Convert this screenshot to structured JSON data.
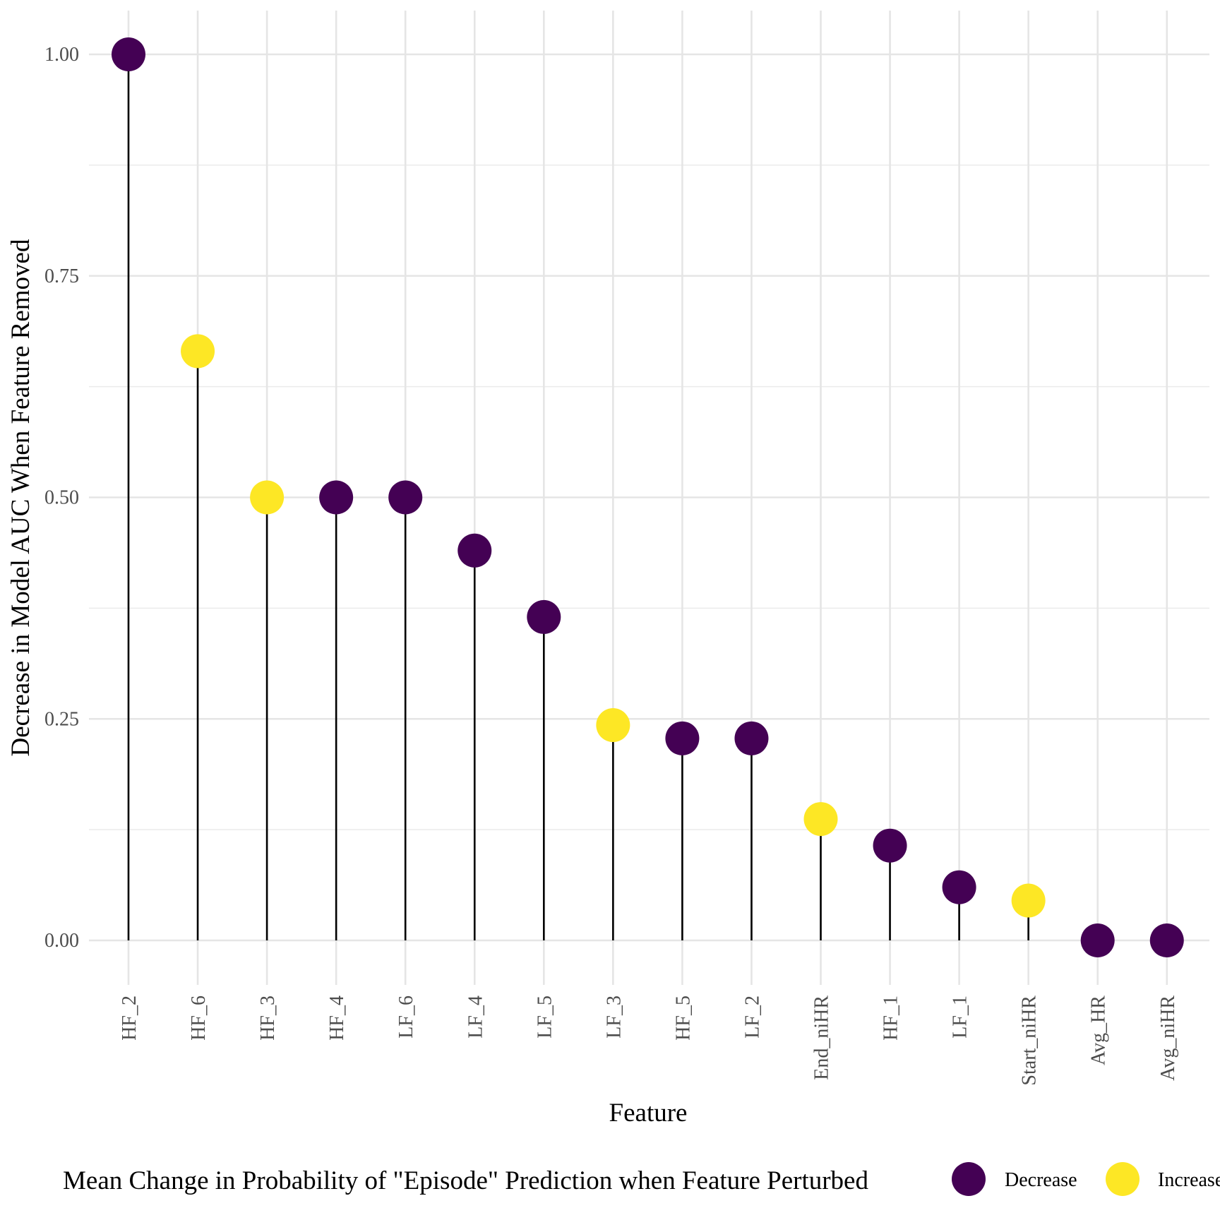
{
  "chart_data": {
    "type": "lollipop",
    "xlabel": "Feature",
    "ylabel": "Decrease in Model AUC When Feature Removed",
    "ylim": [
      -0.05,
      1.05
    ],
    "yticks": [
      0.0,
      0.25,
      0.5,
      0.75,
      1.0
    ],
    "ytick_labels": [
      "0.00",
      "0.25",
      "0.50",
      "0.75",
      "1.00"
    ],
    "grid": true,
    "categories": [
      "HF_2",
      "HF_6",
      "HF_3",
      "HF_4",
      "LF_6",
      "LF_4",
      "LF_5",
      "LF_3",
      "HF_5",
      "LF_2",
      "End_niHR",
      "HF_1",
      "LF_1",
      "Start_niHR",
      "Avg_HR",
      "Avg_niHR"
    ],
    "values": [
      1.0,
      0.665,
      0.5,
      0.5,
      0.5,
      0.44,
      0.365,
      0.243,
      0.228,
      0.228,
      0.137,
      0.107,
      0.06,
      0.045,
      0.0,
      0.0
    ],
    "direction": [
      "Decrease",
      "Increase",
      "Increase",
      "Decrease",
      "Decrease",
      "Decrease",
      "Decrease",
      "Increase",
      "Decrease",
      "Decrease",
      "Increase",
      "Decrease",
      "Decrease",
      "Increase",
      "Decrease",
      "Decrease"
    ],
    "legend": {
      "title": "Mean Change in Probability of \"Episode\" Prediction when Feature Perturbed",
      "position": "bottom",
      "entries": [
        {
          "label": "Decrease",
          "color": "#440154"
        },
        {
          "label": "Increase",
          "color": "#FDE725"
        }
      ]
    }
  }
}
